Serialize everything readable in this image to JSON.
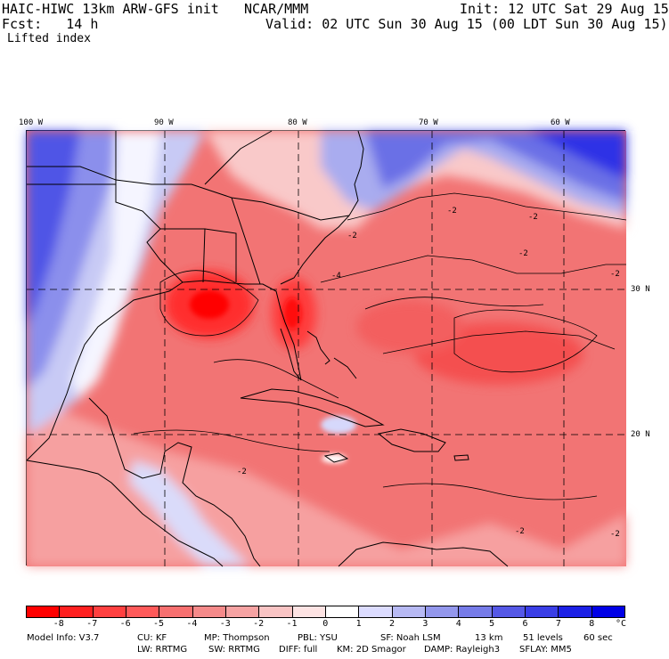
{
  "header": {
    "model": "HAIC-HIWC 13km ARW-GFS init",
    "org": "NCAR/MMM",
    "init": "Init: 12 UTC Sat 29 Aug 15",
    "fcst": "Fcst:   14 h",
    "valid": "Valid: 02 UTC Sun 30 Aug 15 (00 LDT Sun 30 Aug 15)",
    "field": "Lifted index"
  },
  "map": {
    "lon_labels": [
      "100 W",
      "90 W",
      "80 W",
      "70 W",
      "60 W"
    ],
    "lat_labels": [
      "30 N",
      "20 N"
    ],
    "contour_labels": [
      "-2",
      "-2",
      "-2",
      "-2",
      "-2",
      "-2",
      "-2",
      "-4",
      "-2"
    ]
  },
  "colorbar": {
    "unit": "°C",
    "tick_labels": [
      "-8",
      "-7",
      "-6",
      "-5",
      "-4",
      "-3",
      "-2",
      "-1",
      "0",
      "1",
      "2",
      "3",
      "4",
      "5",
      "6",
      "7",
      "8"
    ],
    "colors": [
      "#ff0000",
      "#ff2020",
      "#ff4040",
      "#ff5a5a",
      "#f77070",
      "#f58a8a",
      "#f6a3a3",
      "#f9c4c4",
      "#fde3e3",
      "#ffffff",
      "#dcdcff",
      "#b7b9f3",
      "#9397ec",
      "#767be8",
      "#5558e6",
      "#3a3ee6",
      "#1c20e6",
      "#0000e6"
    ]
  },
  "model_info": {
    "line1": [
      "Model Info: V3.7",
      "CU: KF",
      "MP: Thompson",
      "PBL: YSU",
      "SF: Noah LSM",
      "13 km",
      "51 levels",
      "60 sec"
    ],
    "line2": [
      "LW: RRTMG",
      "SW: RRTMG",
      "DIFF: full",
      "KM: 2D Smagor",
      "DAMP: Rayleigh3",
      "SFLAY: MM5"
    ]
  }
}
